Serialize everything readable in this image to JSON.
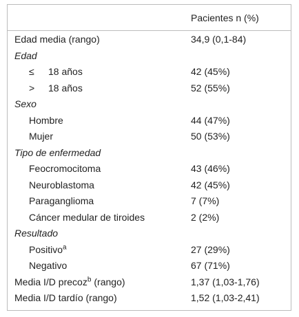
{
  "table": {
    "header": {
      "column": "Pacientes n (%)"
    },
    "rows": [
      {
        "label": "Edad media (rango)",
        "value": "34,9 (0,1-84)"
      },
      {
        "section": "Edad",
        "items": [
          {
            "symbol": "≤",
            "label": "18 años",
            "value": "42 (45%)"
          },
          {
            "symbol": ">",
            "label": "18 años",
            "value": "52 (55%)"
          }
        ]
      },
      {
        "section": "Sexo",
        "items": [
          {
            "label": "Hombre",
            "value": "44 (47%)"
          },
          {
            "label": "Mujer",
            "value": "50 (53%)"
          }
        ]
      },
      {
        "section": "Tipo de enfermedad",
        "items": [
          {
            "label": "Feocromocitoma",
            "value": "43 (46%)"
          },
          {
            "label": "Neuroblastoma",
            "value": "42 (45%)"
          },
          {
            "label": "Paraganglioma",
            "value": "7 (7%)"
          },
          {
            "label": "Cáncer medular de tiroides",
            "value": "2 (2%)"
          }
        ]
      },
      {
        "section": "Resultado",
        "items": [
          {
            "label": "Positivo",
            "sup": "a",
            "value": "27 (29%)"
          },
          {
            "label": "Negativo",
            "value": "67 (71%)"
          }
        ]
      },
      {
        "label": "Media I/D precoz",
        "sup": "b",
        "suffix": "(rango)",
        "value": "1,37 (1,03-1,76)"
      },
      {
        "label": "Media I/D tardío (rango)",
        "value": "1,52 (1,03-2,41)"
      }
    ]
  }
}
